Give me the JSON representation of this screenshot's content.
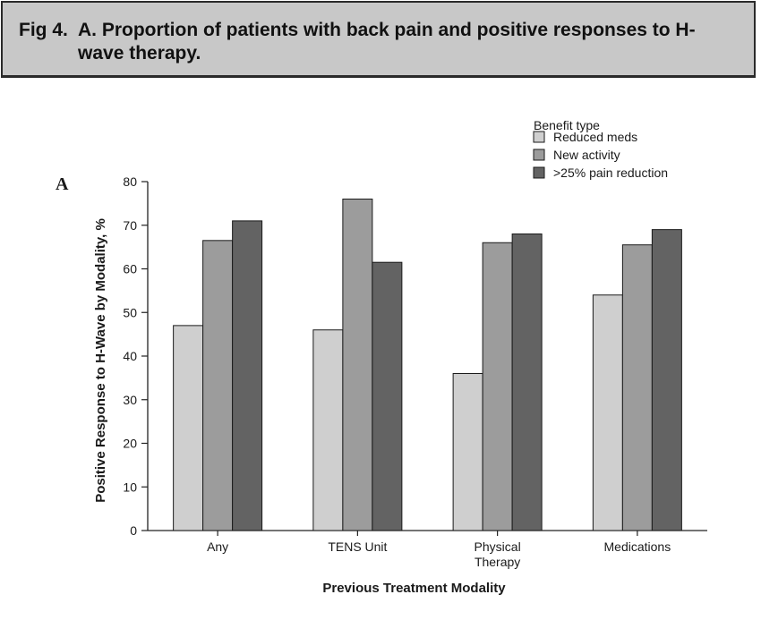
{
  "header": {
    "fig_label": "Fig 4.",
    "title": "A. Proportion of patients with back pain and positive responses to H-wave therapy."
  },
  "panel_label": "A",
  "colors": {
    "Reduced meds": "#cfcfcf",
    "New activity": "#9c9c9c",
    ">25% pain reduction": "#636363"
  },
  "chart_data": {
    "type": "bar",
    "categories": [
      [
        "Any"
      ],
      [
        "TENS Unit"
      ],
      [
        "Physical",
        "Therapy"
      ],
      [
        "Medications"
      ]
    ],
    "series": [
      {
        "name": "Reduced meds",
        "values": [
          47,
          46,
          36,
          54
        ]
      },
      {
        "name": "New activity",
        "values": [
          66.5,
          76,
          66,
          65.5
        ]
      },
      {
        "name": ">25% pain reduction",
        "values": [
          71,
          61.5,
          68,
          69
        ]
      }
    ],
    "xlabel": "Previous Treatment Modality",
    "ylabel": "Positive Response to H-Wave by Modality, %",
    "ylim": [
      0,
      80
    ],
    "yticks": [
      0,
      10,
      20,
      30,
      40,
      50,
      60,
      70,
      80
    ],
    "legend": {
      "title": "Benefit type",
      "placement": "top-right"
    },
    "grid": false
  }
}
